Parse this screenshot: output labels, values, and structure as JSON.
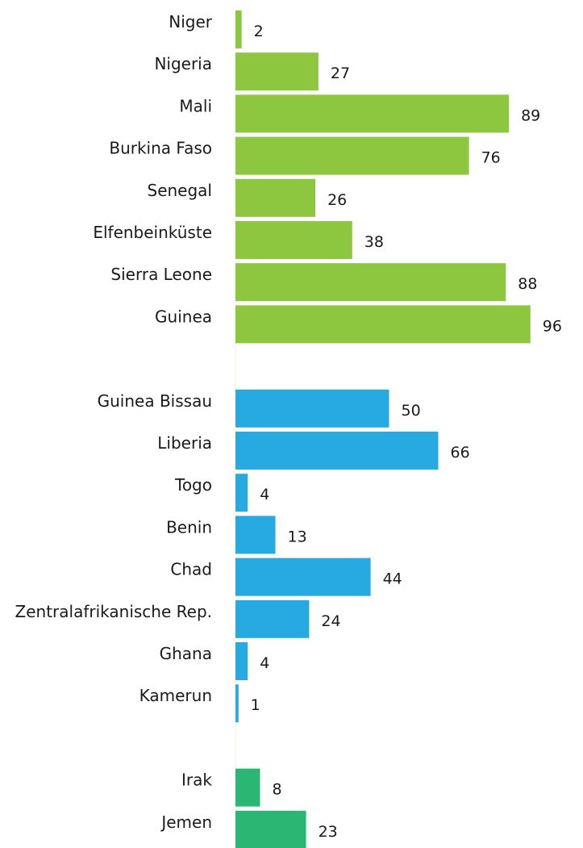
{
  "chart_data": {
    "type": "bar",
    "orientation": "horizontal",
    "title": "",
    "xlabel": "",
    "ylabel": "",
    "xlim": [
      0,
      100
    ],
    "grid": false,
    "legend": "none",
    "groups": [
      {
        "color": "#8dc63f",
        "categories": [
          "Niger",
          "Nigeria",
          "Mali",
          "Burkina Faso",
          "Senegal",
          "Elfenbeinküste",
          "Sierra Leone",
          "Guinea"
        ],
        "values": [
          2,
          27,
          89,
          76,
          26,
          38,
          88,
          96
        ]
      },
      {
        "color": "#27a9e1",
        "categories": [
          "Guinea Bissau",
          "Liberia",
          "Togo",
          "Benin",
          "Chad",
          "Zentralafrikanische Rep.",
          "Ghana",
          "Kamerun"
        ],
        "values": [
          50,
          66,
          4,
          13,
          44,
          24,
          4,
          1
        ]
      },
      {
        "color": "#2bb673",
        "categories": [
          "Irak",
          "Jemen"
        ],
        "values": [
          8,
          23
        ]
      }
    ]
  }
}
